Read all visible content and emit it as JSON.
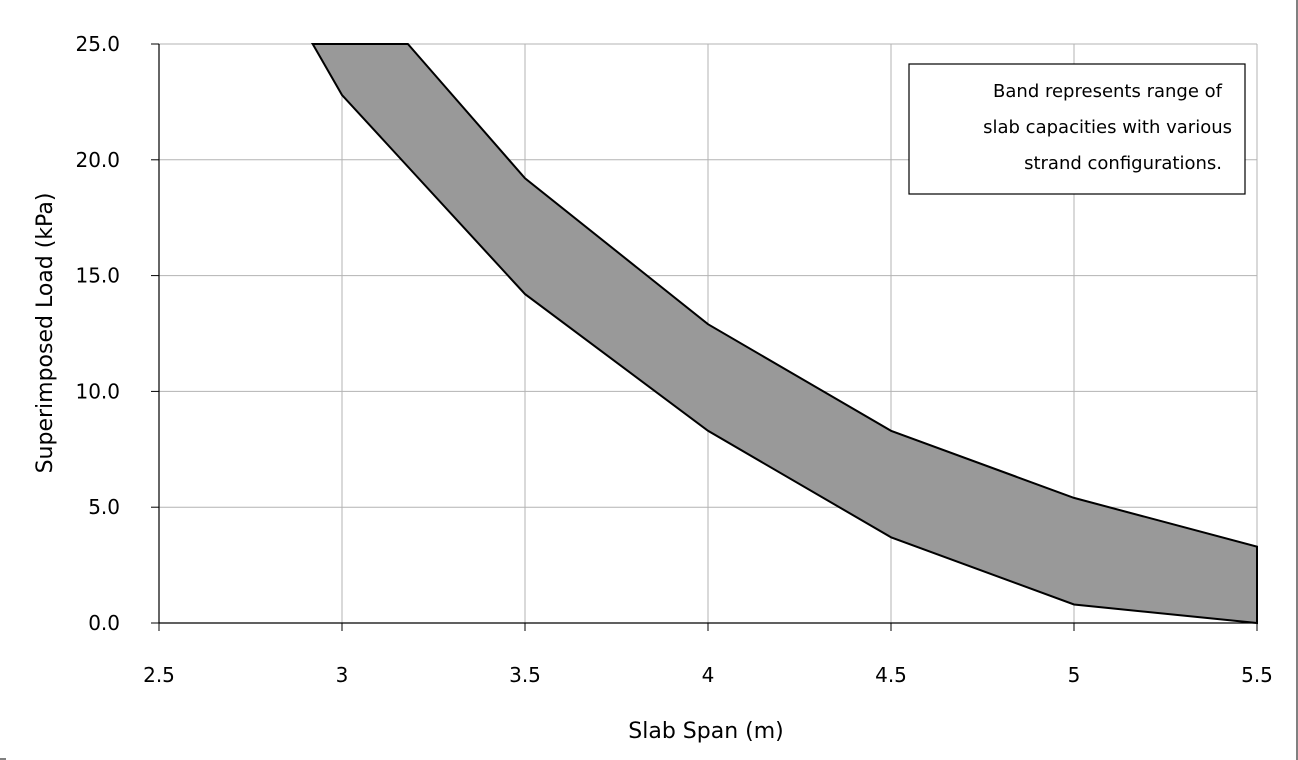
{
  "chart_data": {
    "type": "area",
    "xlabel": "Slab Span (m)",
    "ylabel": "Superimposed Load (kPa)",
    "xlim": [
      2.5,
      5.5
    ],
    "ylim": [
      0.0,
      25.0
    ],
    "x_ticks": [
      "2.5",
      "3",
      "3.5",
      "4",
      "4.5",
      "5",
      "5.5"
    ],
    "y_ticks": [
      "0.0",
      "5.0",
      "10.0",
      "15.0",
      "20.0",
      "25.0"
    ],
    "grid": true,
    "band": {
      "upper": {
        "x": [
          3.18,
          3.5,
          4.0,
          4.5,
          5.0,
          5.5
        ],
        "y": [
          25.0,
          19.2,
          12.9,
          8.3,
          5.4,
          3.3
        ]
      },
      "lower": {
        "x": [
          2.92,
          3.0,
          3.5,
          4.0,
          4.5,
          5.0,
          5.5
        ],
        "y": [
          25.0,
          22.8,
          14.2,
          8.3,
          3.7,
          0.8,
          0.0
        ]
      },
      "fill_color": "#999999",
      "line_color": "#000000"
    },
    "annotation": {
      "lines": [
        "Band represents range of",
        "slab capacities with various",
        "strand configurations."
      ],
      "placement": "top-right"
    }
  }
}
